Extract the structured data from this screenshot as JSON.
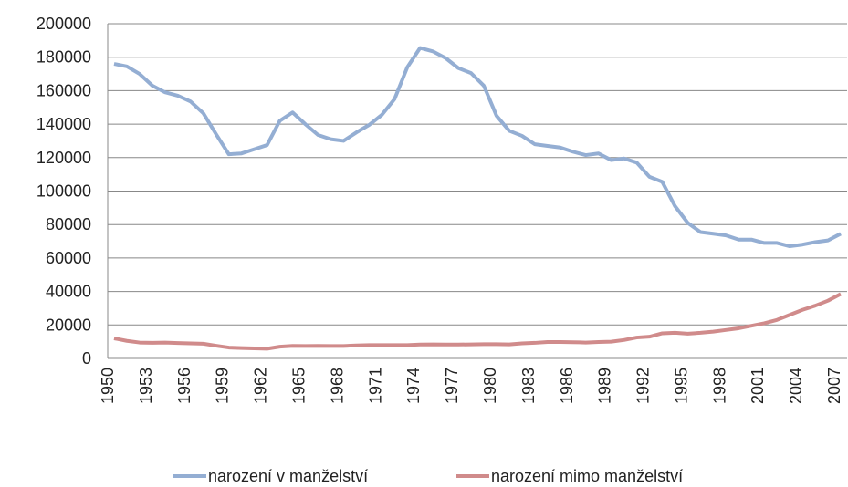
{
  "chart_data": {
    "type": "line",
    "categories": [
      "1950",
      null,
      null,
      "1953",
      null,
      null,
      "1956",
      null,
      null,
      "1959",
      null,
      null,
      "1962",
      null,
      null,
      "1965",
      null,
      null,
      "1968",
      null,
      null,
      "1971",
      null,
      null,
      "1974",
      null,
      null,
      "1977",
      null,
      null,
      "1980",
      null,
      null,
      "1983",
      null,
      null,
      "1986",
      null,
      null,
      "1989",
      null,
      null,
      "1992",
      null,
      null,
      "1995",
      null,
      null,
      "1998",
      null,
      null,
      "2001",
      null,
      null,
      "2004",
      null,
      null,
      "2007"
    ],
    "series": [
      {
        "name": "narození v manželství",
        "color": "#94aed3",
        "values": [
          176000,
          174500,
          170000,
          163000,
          159000,
          157000,
          153500,
          146500,
          134000,
          122000,
          122500,
          125000,
          127500,
          142000,
          147000,
          140000,
          133500,
          131000,
          130000,
          135000,
          139500,
          145500,
          155000,
          174000,
          185500,
          183500,
          179500,
          173500,
          170500,
          163000,
          145000,
          136000,
          133000,
          128000,
          127000,
          126000,
          123500,
          121500,
          122500,
          118500,
          119500,
          117000,
          108500,
          105500,
          91000,
          81000,
          75500,
          74500,
          73500,
          71000,
          71000,
          69000,
          69000,
          67000,
          68000,
          69500,
          70500,
          74500
        ]
      },
      {
        "name": "narození mimo manželství",
        "color": "#d08b8b",
        "values": [
          12000,
          10500,
          9500,
          9300,
          9500,
          9200,
          9000,
          8800,
          7600,
          6500,
          6200,
          6000,
          5800,
          7000,
          7500,
          7400,
          7500,
          7400,
          7400,
          7800,
          8000,
          8000,
          8000,
          8000,
          8300,
          8400,
          8300,
          8300,
          8400,
          8500,
          8500,
          8400,
          9000,
          9300,
          9800,
          9800,
          9700,
          9500,
          9800,
          10000,
          11000,
          12500,
          13000,
          15000,
          15300,
          14800,
          15300,
          16000,
          17000,
          18000,
          19500,
          21000,
          23000,
          26000,
          29000,
          31500,
          34500,
          38500
        ]
      }
    ],
    "ylim": [
      0,
      200000
    ],
    "yticks": [
      0,
      20000,
      40000,
      60000,
      80000,
      100000,
      120000,
      140000,
      160000,
      180000,
      200000
    ],
    "grid": true,
    "legend": "bottom"
  }
}
